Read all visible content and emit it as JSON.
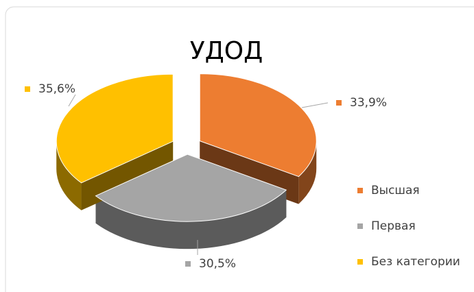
{
  "chart_data": {
    "type": "pie",
    "title": "УДОД",
    "categories": [
      "Высшая",
      "Первая",
      "Без категории"
    ],
    "values": [
      33.9,
      30.5,
      35.6
    ],
    "value_labels": [
      "33,9%",
      "30,5%",
      "35,6%"
    ],
    "colors": [
      "#ED7D31",
      "#A5A5A5",
      "#FFC000"
    ],
    "legend": "right"
  }
}
